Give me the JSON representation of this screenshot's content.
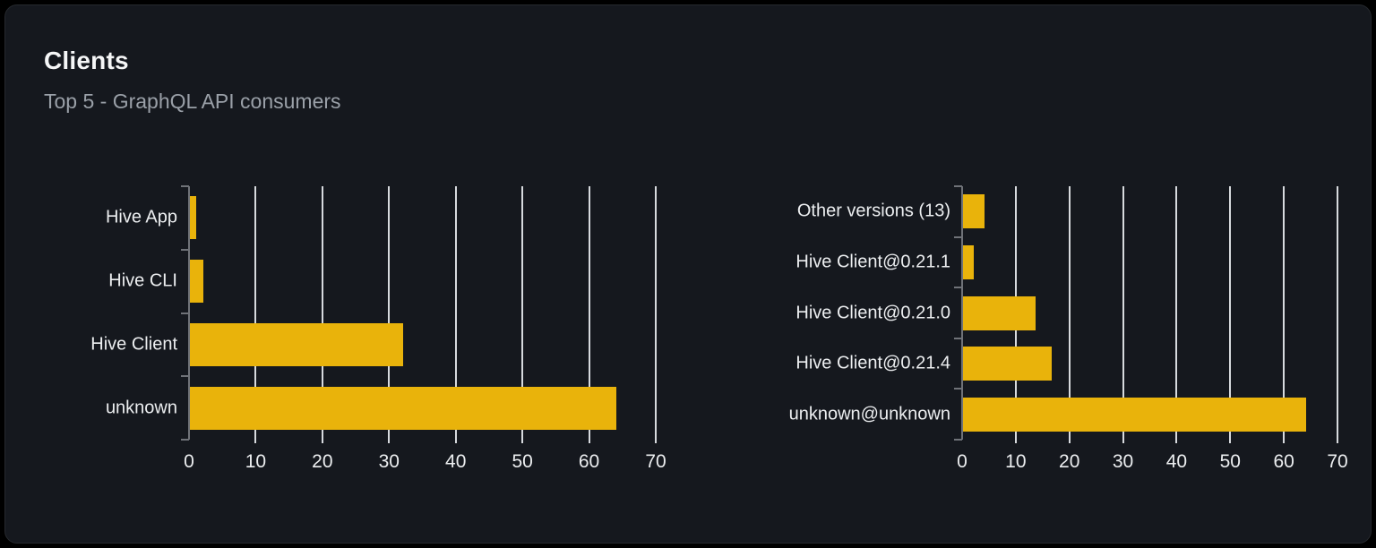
{
  "card": {
    "title": "Clients",
    "subtitle": "Top 5 - GraphQL API consumers"
  },
  "colors": {
    "bar": "#e9b30b",
    "card_background": "#15181e",
    "page_background": "#000000",
    "gridline": "#d7dade",
    "axis": "#6f7278",
    "text_primary": "#f5f6f7",
    "text_secondary": "#9aa0a8",
    "tick_label": "#eceef0"
  },
  "chart_data": [
    {
      "type": "bar",
      "orientation": "horizontal",
      "title": "",
      "categories": [
        "Hive App",
        "Hive CLI",
        "Hive Client",
        "unknown"
      ],
      "values": [
        1,
        2,
        32,
        64
      ],
      "xlim": [
        0,
        70
      ],
      "xticks": [
        0,
        10,
        20,
        30,
        40,
        50,
        60,
        70
      ],
      "grid": true,
      "legend": "none",
      "bar_color": "#e9b30b"
    },
    {
      "type": "bar",
      "orientation": "horizontal",
      "title": "",
      "categories": [
        "Other versions (13)",
        "Hive Client@0.21.1",
        "Hive Client@0.21.0",
        "Hive Client@0.21.4",
        "unknown@unknown"
      ],
      "values": [
        4,
        2,
        13.5,
        16.5,
        64
      ],
      "xlim": [
        0,
        70
      ],
      "xticks": [
        0,
        10,
        20,
        30,
        40,
        50,
        60,
        70
      ],
      "grid": true,
      "legend": "none",
      "bar_color": "#e9b30b"
    }
  ]
}
